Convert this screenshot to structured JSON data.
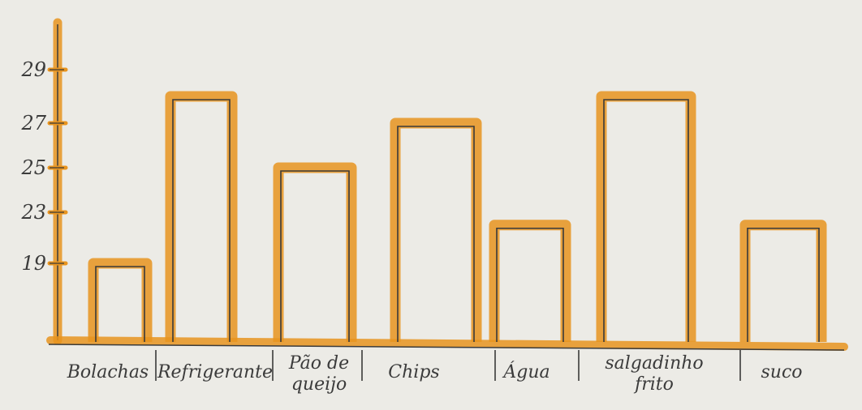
{
  "chart_data": {
    "type": "bar",
    "categories": [
      "Bolachas",
      "Refrigerante",
      "Pão de queijo",
      "Chips",
      "Água",
      "salgadinho frito",
      "suco"
    ],
    "values": [
      19,
      28,
      25,
      27,
      22,
      28,
      22
    ],
    "yticks": [
      19,
      23,
      25,
      27,
      29
    ],
    "title": "",
    "xlabel": "",
    "ylabel": "",
    "bar_color": "#e8941f",
    "line_color": "#3a3a3a"
  }
}
